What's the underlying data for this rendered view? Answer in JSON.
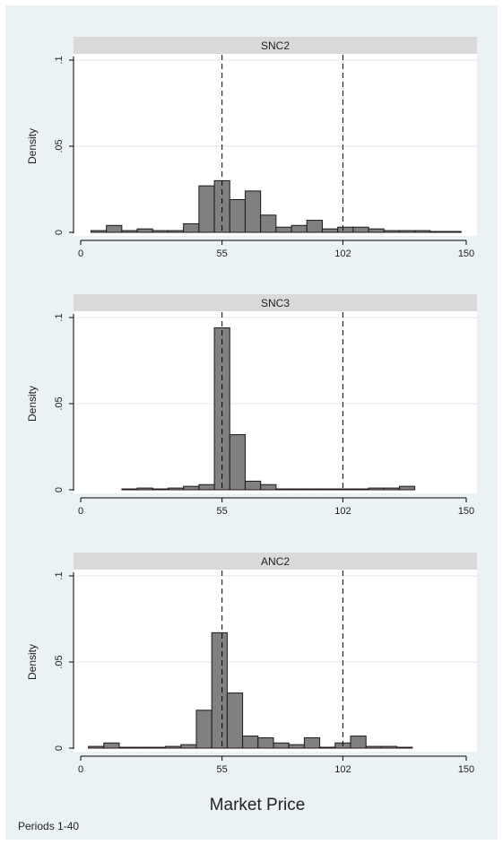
{
  "figure": {
    "xlabel": "Market Price",
    "note": "Periods 1-40",
    "colors": {
      "background": "#eaf2f3",
      "plot_background": "#ffffff",
      "strip": "#d9d9d9",
      "bar_fill": "#808080",
      "bar_stroke": "#1a1a1a",
      "grid": "#e6e6e6",
      "refline": "#000000"
    }
  },
  "chart_data": [
    {
      "type": "bar",
      "title": "SNC2",
      "ylabel": "Density",
      "xlim": [
        0,
        150
      ],
      "ylim": [
        0,
        0.1
      ],
      "xticks": [
        0,
        55,
        102,
        150
      ],
      "xtick_labels": [
        "0",
        "55",
        "102",
        "150"
      ],
      "yticks": [
        0,
        0.05,
        0.1
      ],
      "ytick_labels": [
        "0",
        ".05",
        ".1"
      ],
      "reference_lines_x": [
        55,
        102
      ],
      "grid": true,
      "bin_width": 6,
      "bin_starts": [
        4,
        10,
        16,
        22,
        28,
        34,
        40,
        46,
        52,
        58,
        64,
        70,
        76,
        82,
        88,
        94,
        100,
        106,
        112,
        118,
        124,
        130,
        136,
        142
      ],
      "values": [
        0.001,
        0.004,
        0.001,
        0.002,
        0.001,
        0.001,
        0.005,
        0.027,
        0.03,
        0.019,
        0.024,
        0.01,
        0.003,
        0.004,
        0.007,
        0.002,
        0.003,
        0.003,
        0.002,
        0.001,
        0.001,
        0.001,
        0.0005,
        0.0005
      ]
    },
    {
      "type": "bar",
      "title": "SNC3",
      "ylabel": "Density",
      "xlim": [
        0,
        150
      ],
      "ylim": [
        0,
        0.1
      ],
      "xticks": [
        0,
        55,
        102,
        150
      ],
      "xtick_labels": [
        "0",
        "55",
        "102",
        "150"
      ],
      "yticks": [
        0,
        0.05,
        0.1
      ],
      "ytick_labels": [
        "0",
        ".05",
        ".1"
      ],
      "reference_lines_x": [
        55,
        102
      ],
      "grid": true,
      "bin_width": 6,
      "bin_starts": [
        16,
        22,
        28,
        34,
        40,
        46,
        52,
        58,
        64,
        70,
        76,
        82,
        88,
        94,
        100,
        106,
        112,
        118,
        124
      ],
      "values": [
        0.0005,
        0.001,
        0.0005,
        0.001,
        0.002,
        0.003,
        0.094,
        0.032,
        0.005,
        0.003,
        0.0005,
        0.0005,
        0.0005,
        0.0005,
        0.0005,
        0.0005,
        0.001,
        0.001,
        0.002
      ]
    },
    {
      "type": "bar",
      "title": "ANC2",
      "ylabel": "Density",
      "xlim": [
        0,
        150
      ],
      "ylim": [
        0,
        0.1
      ],
      "xticks": [
        0,
        55,
        102,
        150
      ],
      "xtick_labels": [
        "0",
        "55",
        "102",
        "150"
      ],
      "yticks": [
        0,
        0.05,
        0.1
      ],
      "ytick_labels": [
        "0",
        ".05",
        ".1"
      ],
      "reference_lines_x": [
        55,
        102
      ],
      "grid": true,
      "bin_width": 6,
      "bin_starts": [
        3,
        9,
        15,
        21,
        27,
        33,
        39,
        45,
        51,
        57,
        63,
        69,
        75,
        81,
        87,
        93,
        99,
        105,
        111,
        117,
        123
      ],
      "values": [
        0.001,
        0.003,
        0.0005,
        0.0005,
        0.0005,
        0.001,
        0.002,
        0.022,
        0.067,
        0.032,
        0.007,
        0.006,
        0.003,
        0.002,
        0.006,
        0.0005,
        0.003,
        0.007,
        0.001,
        0.001,
        0.0005
      ]
    }
  ]
}
